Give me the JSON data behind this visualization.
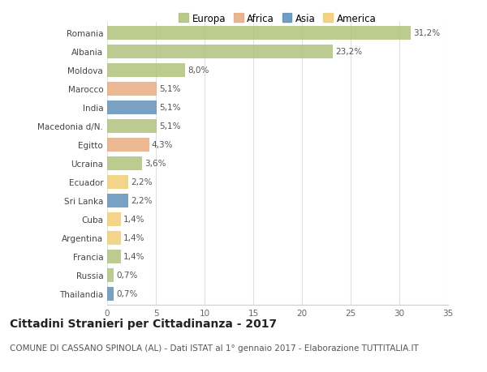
{
  "categories": [
    "Romania",
    "Albania",
    "Moldova",
    "Marocco",
    "India",
    "Macedonia d/N.",
    "Egitto",
    "Ucraina",
    "Ecuador",
    "Sri Lanka",
    "Cuba",
    "Argentina",
    "Francia",
    "Russia",
    "Thailandia"
  ],
  "values": [
    31.2,
    23.2,
    8.0,
    5.1,
    5.1,
    5.1,
    4.3,
    3.6,
    2.2,
    2.2,
    1.4,
    1.4,
    1.4,
    0.7,
    0.7
  ],
  "labels": [
    "31,2%",
    "23,2%",
    "8,0%",
    "5,1%",
    "5,1%",
    "5,1%",
    "4,3%",
    "3,6%",
    "2,2%",
    "2,2%",
    "1,4%",
    "1,4%",
    "1,4%",
    "0,7%",
    "0,7%"
  ],
  "colors": [
    "#adc178",
    "#adc178",
    "#adc178",
    "#e8a87c",
    "#5b8db8",
    "#adc178",
    "#e8a87c",
    "#adc178",
    "#f0cc6e",
    "#5b8db8",
    "#f0cc6e",
    "#f0cc6e",
    "#adc178",
    "#adc178",
    "#5b8db8"
  ],
  "legend_labels": [
    "Europa",
    "Africa",
    "Asia",
    "America"
  ],
  "legend_colors": [
    "#adc178",
    "#e8a87c",
    "#5b8db8",
    "#f0cc6e"
  ],
  "xlim": [
    0,
    35
  ],
  "xticks": [
    0,
    5,
    10,
    15,
    20,
    25,
    30,
    35
  ],
  "title": "Cittadini Stranieri per Cittadinanza - 2017",
  "subtitle": "COMUNE DI CASSANO SPINOLA (AL) - Dati ISTAT al 1° gennaio 2017 - Elaborazione TUTTITALIA.IT",
  "bg_color": "#ffffff",
  "grid_color": "#e0e0e0",
  "bar_height": 0.72,
  "title_fontsize": 10,
  "subtitle_fontsize": 7.5,
  "label_fontsize": 7.5,
  "tick_fontsize": 7.5,
  "legend_fontsize": 8.5
}
